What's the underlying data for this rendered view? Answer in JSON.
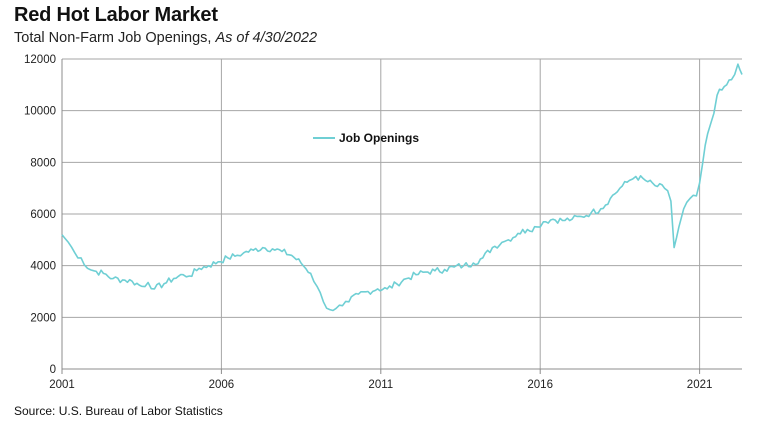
{
  "header": {
    "title": "Red Hot Labor Market",
    "subtitle_main": "Total Non-Farm Job Openings, ",
    "subtitle_asof": "As of 4/30/2022"
  },
  "footer": {
    "source": "Source: U.S. Bureau of Labor Statistics"
  },
  "colors": {
    "series": "#6fcfd4",
    "grid": "#a6a6a6",
    "axis": "#8c8c8c"
  },
  "chart_data": {
    "type": "line",
    "xlim": [
      2001,
      2022.33
    ],
    "ylim": [
      0,
      12000
    ],
    "grid": true,
    "legend_position": "top-center",
    "x_ticks": [
      2001,
      2006,
      2011,
      2016,
      2021
    ],
    "x_tick_labels": [
      "2001",
      "2006",
      "2011",
      "2016",
      "2021"
    ],
    "y_ticks": [
      0,
      2000,
      4000,
      6000,
      8000,
      10000,
      12000
    ],
    "y_tick_labels": [
      "0",
      "2000",
      "4000",
      "6000",
      "8000",
      "10000",
      "12000"
    ],
    "series": [
      {
        "name": "Job Openings",
        "points": [
          [
            2001.0,
            5200
          ],
          [
            2001.2,
            4900
          ],
          [
            2001.4,
            4500
          ],
          [
            2001.6,
            4300
          ],
          [
            2001.8,
            3900
          ],
          [
            2002.0,
            3800
          ],
          [
            2002.3,
            3700
          ],
          [
            2002.6,
            3500
          ],
          [
            2002.9,
            3450
          ],
          [
            2003.2,
            3400
          ],
          [
            2003.5,
            3200
          ],
          [
            2003.7,
            3350
          ],
          [
            2003.9,
            3100
          ],
          [
            2004.2,
            3300
          ],
          [
            2004.5,
            3500
          ],
          [
            2004.8,
            3650
          ],
          [
            2005.0,
            3600
          ],
          [
            2005.3,
            3900
          ],
          [
            2005.6,
            4000
          ],
          [
            2005.9,
            4150
          ],
          [
            2006.2,
            4300
          ],
          [
            2006.5,
            4400
          ],
          [
            2006.7,
            4500
          ],
          [
            2007.0,
            4600
          ],
          [
            2007.3,
            4700
          ],
          [
            2007.6,
            4650
          ],
          [
            2007.9,
            4550
          ],
          [
            2008.2,
            4400
          ],
          [
            2008.5,
            4100
          ],
          [
            2008.8,
            3700
          ],
          [
            2009.0,
            3200
          ],
          [
            2009.2,
            2600
          ],
          [
            2009.4,
            2300
          ],
          [
            2009.6,
            2350
          ],
          [
            2009.8,
            2450
          ],
          [
            2010.0,
            2600
          ],
          [
            2010.3,
            2900
          ],
          [
            2010.6,
            3000
          ],
          [
            2010.9,
            3100
          ],
          [
            2011.2,
            3100
          ],
          [
            2011.5,
            3300
          ],
          [
            2011.8,
            3500
          ],
          [
            2012.1,
            3650
          ],
          [
            2012.4,
            3750
          ],
          [
            2012.7,
            3800
          ],
          [
            2013.0,
            3850
          ],
          [
            2013.3,
            3950
          ],
          [
            2013.6,
            4000
          ],
          [
            2013.9,
            4100
          ],
          [
            2014.2,
            4300
          ],
          [
            2014.5,
            4700
          ],
          [
            2014.8,
            4900
          ],
          [
            2015.0,
            5000
          ],
          [
            2015.3,
            5250
          ],
          [
            2015.6,
            5400
          ],
          [
            2015.9,
            5500
          ],
          [
            2016.1,
            5700
          ],
          [
            2016.4,
            5800
          ],
          [
            2016.7,
            5750
          ],
          [
            2017.0,
            5800
          ],
          [
            2017.3,
            5900
          ],
          [
            2017.6,
            6050
          ],
          [
            2017.9,
            6200
          ],
          [
            2018.2,
            6600
          ],
          [
            2018.5,
            7000
          ],
          [
            2018.8,
            7300
          ],
          [
            2019.0,
            7450
          ],
          [
            2019.3,
            7300
          ],
          [
            2019.6,
            7100
          ],
          [
            2019.9,
            7000
          ],
          [
            2020.0,
            6900
          ],
          [
            2020.1,
            6500
          ],
          [
            2020.2,
            4700
          ],
          [
            2020.35,
            5500
          ],
          [
            2020.5,
            6200
          ],
          [
            2020.7,
            6600
          ],
          [
            2020.9,
            6700
          ],
          [
            2021.0,
            7200
          ],
          [
            2021.1,
            8000
          ],
          [
            2021.25,
            9100
          ],
          [
            2021.45,
            9900
          ],
          [
            2021.55,
            10600
          ],
          [
            2021.7,
            10800
          ],
          [
            2021.85,
            11000
          ],
          [
            2022.0,
            11200
          ],
          [
            2022.1,
            11400
          ],
          [
            2022.2,
            11800
          ],
          [
            2022.33,
            11400
          ]
        ]
      }
    ]
  }
}
